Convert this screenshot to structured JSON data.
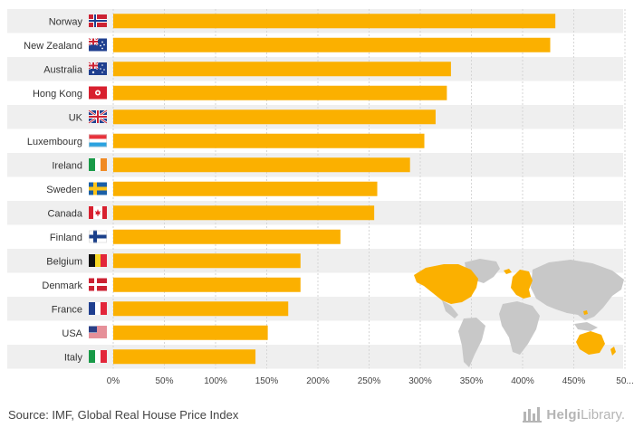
{
  "chart_data": {
    "type": "bar",
    "orientation": "horizontal",
    "categories": [
      "Norway",
      "New Zealand",
      "Australia",
      "Hong Kong",
      "UK",
      "Luxembourg",
      "Ireland",
      "Sweden",
      "Canada",
      "Finland",
      "Belgium",
      "Denmark",
      "France",
      "USA",
      "Italy"
    ],
    "values": [
      432,
      427,
      330,
      326,
      315,
      304,
      290,
      258,
      255,
      222,
      183,
      183,
      171,
      151,
      139
    ],
    "value_unit": "%",
    "xlim": [
      0,
      500
    ],
    "xticks": [
      "0%",
      "50%",
      "100%",
      "150%",
      "200%",
      "250%",
      "300%",
      "350%",
      "400%",
      "450%",
      "50..."
    ],
    "grid": true,
    "bar_color": "#fbb000",
    "flags": [
      "norway-flag-icon",
      "new-zealand-flag-icon",
      "australia-flag-icon",
      "hong-kong-flag-icon",
      "uk-flag-icon",
      "luxembourg-flag-icon",
      "ireland-flag-icon",
      "sweden-flag-icon",
      "canada-flag-icon",
      "finland-flag-icon",
      "belgium-flag-icon",
      "denmark-flag-icon",
      "france-flag-icon",
      "usa-flag-icon",
      "italy-flag-icon"
    ],
    "map_highlight_color": "#fbb000",
    "map_base_color": "#c8c8c8"
  },
  "footer": {
    "source": "Source: IMF, Global Real House Price Index",
    "brand_name": "Helgi",
    "brand_suffix": "Library."
  }
}
